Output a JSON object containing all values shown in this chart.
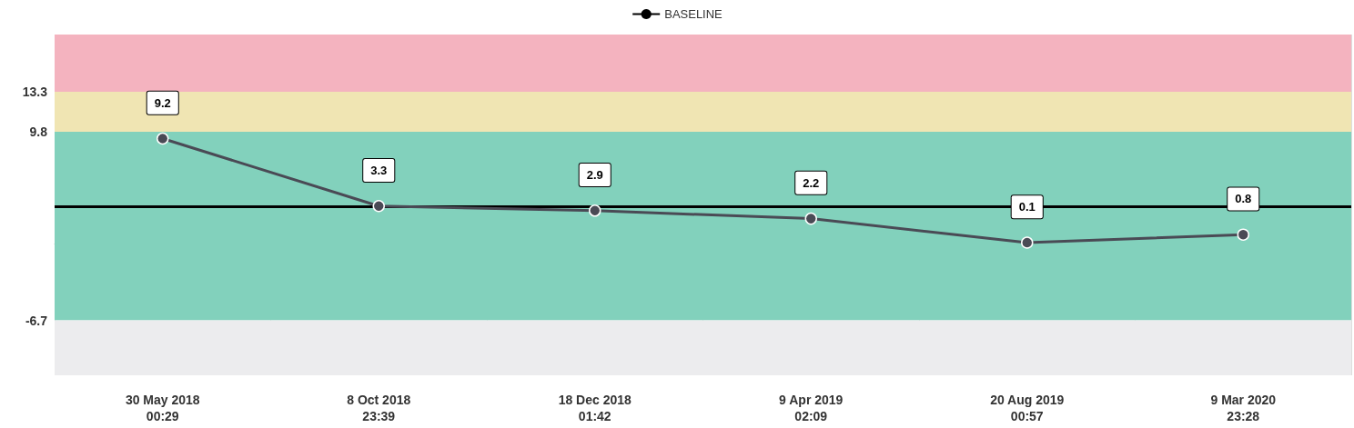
{
  "chart_data": {
    "type": "line",
    "categories": [
      "30 May 2018\n00:29",
      "8 Oct 2018\n23:39",
      "18 Dec 2018\n01:42",
      "9 Apr 2019\n02:09",
      "20 Aug 2019\n00:57",
      "9 Mar 2020\n23:28"
    ],
    "series": [
      {
        "color": "#4a4a55",
        "values": [
          9.2,
          3.3,
          2.9,
          2.2,
          0.1,
          0.8
        ]
      }
    ],
    "ylim": [
      -11.5,
      18.3
    ],
    "yticks": [
      -6.7,
      9.8,
      13.3
    ],
    "ref_lines": [
      {
        "axis": "y",
        "value": 3.3,
        "label": "BASELINE",
        "color": "#000000"
      }
    ],
    "bands": [
      {
        "axis": "y",
        "from": 13.3,
        "to": 18.3,
        "color": "#f4b3bf"
      },
      {
        "axis": "y",
        "from": 9.8,
        "to": 13.3,
        "color": "#f0e5b3"
      },
      {
        "axis": "y",
        "from": -6.7,
        "to": 9.8,
        "color": "#82d1bc"
      },
      {
        "axis": "y",
        "from": -11.5,
        "to": -6.7,
        "color": "#ececee"
      }
    ],
    "data_labels": true,
    "grid": "x",
    "legend": "top",
    "marker": "circle",
    "line_style": "solid"
  }
}
